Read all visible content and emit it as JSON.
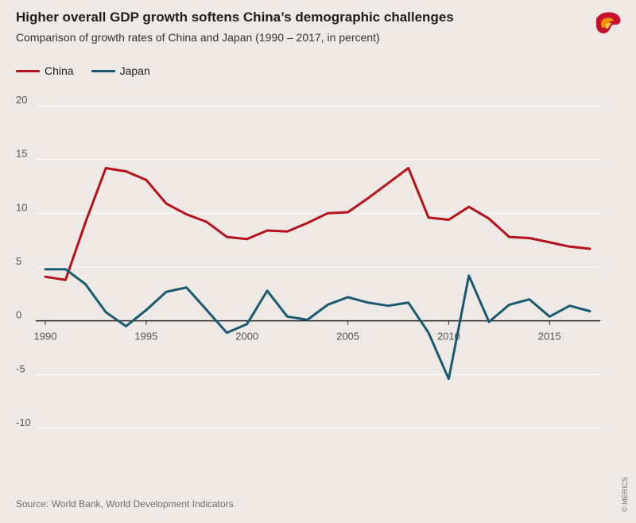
{
  "header": {
    "title": "Higher overall GDP growth softens China’s demographic challenges",
    "subtitle": "Comparison of growth rates of China and Japan (1990 – 2017, in percent)"
  },
  "logo": {
    "icon": "merics-logo-icon"
  },
  "chart_data": {
    "type": "line",
    "title": "Higher overall GDP growth softens China’s demographic challenges",
    "subtitle": "Comparison of growth rates of China and Japan (1990 – 2017, in percent)",
    "x": [
      1990,
      1991,
      1992,
      1993,
      1994,
      1995,
      1996,
      1997,
      1998,
      1999,
      2000,
      2001,
      2002,
      2003,
      2004,
      2005,
      2006,
      2007,
      2008,
      2009,
      2010,
      2011,
      2012,
      2013,
      2014,
      2015,
      2016,
      2017
    ],
    "series": [
      {
        "name": "China",
        "color": "#b5121b",
        "values": [
          4.1,
          3.8,
          9.2,
          14.2,
          13.9,
          13.1,
          10.9,
          9.9,
          9.2,
          7.8,
          7.6,
          8.4,
          8.3,
          9.1,
          10.0,
          10.1,
          11.4,
          12.8,
          14.2,
          9.6,
          9.4,
          10.6,
          9.5,
          7.8,
          7.7,
          7.3,
          6.9,
          6.7
        ]
      },
      {
        "name": "Japan",
        "color": "#1a5a70",
        "values": [
          4.8,
          4.8,
          3.4,
          0.8,
          -0.5,
          1.0,
          2.7,
          3.1,
          1.0,
          -1.1,
          -0.3,
          2.8,
          0.4,
          0.1,
          1.5,
          2.2,
          1.7,
          1.4,
          1.7,
          -1.1,
          -5.4,
          4.2,
          -0.1,
          1.5,
          2.0,
          0.4,
          1.4,
          0.9
        ]
      }
    ],
    "x_ticks": [
      "1990",
      "1995",
      "2000",
      "2005",
      "2010",
      "2015"
    ],
    "y_ticks": [
      "20",
      "15",
      "10",
      "5",
      "0",
      "-5",
      "-10"
    ],
    "xlim": [
      1990,
      2017
    ],
    "ylim": [
      -10,
      20
    ],
    "grid": true,
    "legend": "top-left"
  },
  "footer": {
    "source": "Source: World Bank, World Development Indicators",
    "copyright": "© MERICS"
  }
}
